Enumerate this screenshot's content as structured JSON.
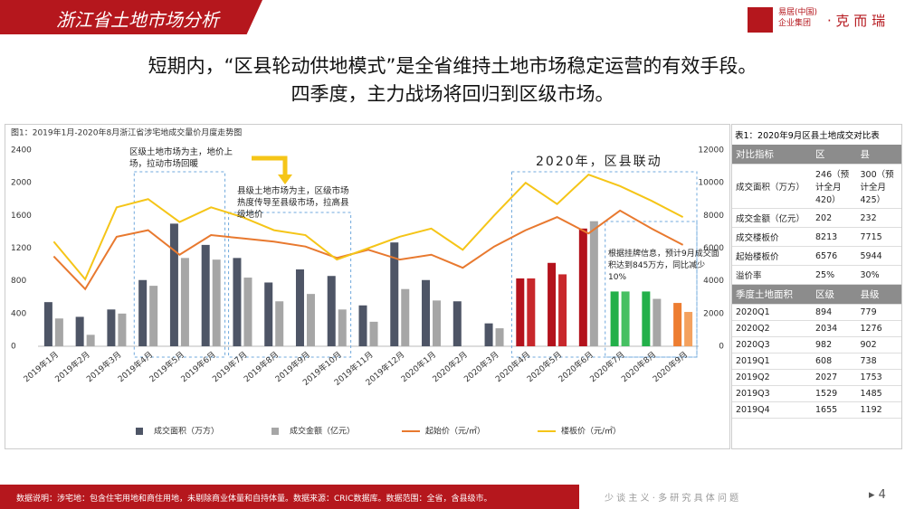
{
  "header": {
    "title": "浙江省土地市场分析",
    "logo_cn": "易居(中国)",
    "logo_group": "企业集团",
    "logo_brand": "· 克 而 瑞"
  },
  "headline": [
    "短期内，“区县轮动供地模式”是全省维持土地市场稳定运营的有效手段。",
    "四季度，主力战场将回归到区级市场。"
  ],
  "chart_data": {
    "type": "bar_line",
    "title": "图1：2019年1月-2020年8月浙江省涉宅地成交量价月度走势图",
    "categories": [
      "2019年1月",
      "2019年2月",
      "2019年3月",
      "2019年4月",
      "2019年5月",
      "2019年6月",
      "2019年7月",
      "2019年8月",
      "2019年9月",
      "2019年10月",
      "2019年11月",
      "2019年12月",
      "2020年1月",
      "2020年2月",
      "2020年3月",
      "2020年4月",
      "2020年5月",
      "2020年6月",
      "2020年7月",
      "2020年8月",
      "2020年9月"
    ],
    "series": [
      {
        "name": "成交面积（万方）",
        "kind": "bar",
        "color": "#4e5566",
        "colors": [
          "#4e5566",
          "#4e5566",
          "#4e5566",
          "#4e5566",
          "#4e5566",
          "#4e5566",
          "#4e5566",
          "#4e5566",
          "#4e5566",
          "#4e5566",
          "#4e5566",
          "#4e5566",
          "#4e5566",
          "#4e5566",
          "#4e5566",
          "#b3121c",
          "#b3121c",
          "#b3121c",
          "#23b04a",
          "#23b04a",
          "#ed7d31"
        ],
        "values": [
          540,
          360,
          450,
          810,
          1500,
          1240,
          1080,
          780,
          940,
          860,
          500,
          1270,
          810,
          550,
          280,
          830,
          1020,
          1440,
          670,
          670,
          530
        ]
      },
      {
        "name": "成交金额（亿元）",
        "kind": "bar",
        "color": "#a6a6a6",
        "colors": [
          "#a6a6a6",
          "#a6a6a6",
          "#a6a6a6",
          "#a6a6a6",
          "#a6a6a6",
          "#a6a6a6",
          "#a6a6a6",
          "#a6a6a6",
          "#a6a6a6",
          "#a6a6a6",
          "#a6a6a6",
          "#a6a6a6",
          "#a6a6a6",
          "#a6a6a6",
          "#a6a6a6",
          "#c8282c",
          "#c8282c",
          "#a6a6a6",
          "#46c062",
          "#a6a6a6",
          "#f4a15e"
        ],
        "values": [
          340,
          140,
          400,
          740,
          1080,
          1060,
          840,
          550,
          640,
          450,
          300,
          700,
          560,
          null,
          220,
          830,
          880,
          1530,
          670,
          580,
          420
        ]
      },
      {
        "name": "起始价（元/㎡）",
        "kind": "line",
        "axis": "y2",
        "color": "#e8792f",
        "values": [
          5500,
          3500,
          6700,
          7100,
          5600,
          6800,
          6600,
          6400,
          6100,
          5400,
          5900,
          5300,
          5600,
          4800,
          6100,
          7100,
          7900,
          6900,
          8300,
          7200,
          6200
        ]
      },
      {
        "name": "楼板价（元/㎡）",
        "kind": "line",
        "axis": "y2",
        "color": "#f5c518",
        "values": [
          6400,
          4100,
          8500,
          9000,
          7600,
          8500,
          7900,
          7100,
          6800,
          5300,
          6000,
          6700,
          7200,
          5900,
          8000,
          10000,
          8700,
          10500,
          9800,
          8900,
          7900
        ]
      }
    ],
    "ylim": [
      0,
      2400
    ],
    "yticks": [
      0,
      400,
      800,
      1200,
      1600,
      2000,
      2400
    ],
    "y2lim": [
      0,
      12000
    ],
    "y2ticks": [
      0,
      2000,
      4000,
      6000,
      8000,
      10000,
      12000
    ],
    "annotations": [
      "区级土地市场为主，地价上场，拉动市场回暖",
      "县级土地市场为主，区级市场热度传导至县级市场，拉高县级地价",
      "2020年，区县联动",
      "根据挂牌信息，预计9月成交面积达到845万方，同比减少10%"
    ]
  },
  "table": {
    "title": "表1：2020年9月区县土地成交对比表",
    "header": [
      "对比指标",
      "区",
      "县"
    ],
    "rows": [
      [
        "成交面积（万方）",
        "246（预计全月420）",
        "300（预计全月425）"
      ],
      [
        "成交金额（亿元）",
        "202",
        "232"
      ],
      [
        "成交楼板价",
        "8213",
        "7715"
      ],
      [
        "起始楼板价",
        "6576",
        "5944"
      ],
      [
        "溢价率",
        "25%",
        "30%"
      ]
    ],
    "header2": [
      "季度土地面积",
      "区级",
      "县级"
    ],
    "rows2": [
      [
        "2020Q1",
        "894",
        "779"
      ],
      [
        "2020Q2",
        "2034",
        "1276"
      ],
      [
        "2020Q3",
        "982",
        "902"
      ],
      [
        "2019Q1",
        "608",
        "738"
      ],
      [
        "2019Q2",
        "2027",
        "1753"
      ],
      [
        "2019Q3",
        "1529",
        "1485"
      ],
      [
        "2019Q4",
        "1655",
        "1192"
      ]
    ]
  },
  "footer": {
    "note": "数据说明：涉宅地：包含住宅用地和商住用地，未剔除商业体量和自持体量。数据来源：CRIC数据库。数据范围：全省，含县级市。",
    "slogan": "少 谈 主 义 · 多 研 究 具 体 问 题",
    "page": "4"
  }
}
